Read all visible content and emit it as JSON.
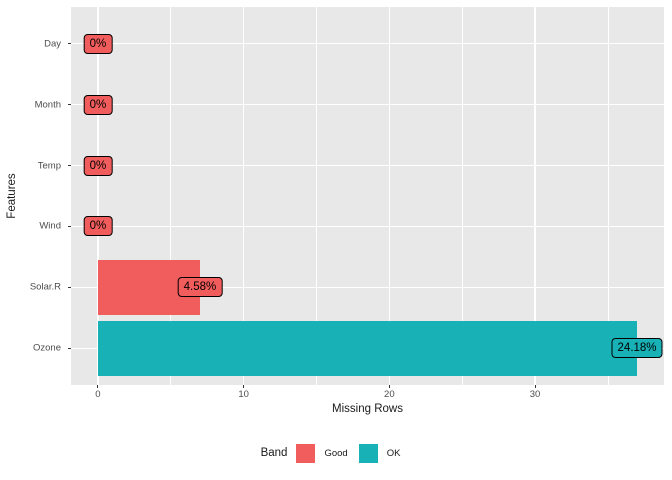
{
  "chart_data": {
    "type": "bar",
    "orientation": "horizontal",
    "xlabel": "Missing Rows",
    "ylabel": "Features",
    "categories_top_to_bottom": [
      "Day",
      "Month",
      "Temp",
      "Wind",
      "Solar.R",
      "Ozone"
    ],
    "series": [
      {
        "name": "Missing Rows",
        "values": [
          0,
          0,
          0,
          0,
          7,
          37
        ]
      }
    ],
    "bar_labels": [
      "0%",
      "0%",
      "0%",
      "0%",
      "4.58%",
      "24.18%"
    ],
    "bands": [
      "Good",
      "Good",
      "Good",
      "Good",
      "Good",
      "OK"
    ],
    "x_ticks": [
      0,
      10,
      20,
      30
    ],
    "x_minor_ticks": [
      5,
      15,
      25,
      35
    ],
    "xlim": [
      -1.85,
      38.85
    ],
    "grid": "on",
    "legend": {
      "title": "Band",
      "position": "bottom",
      "items": [
        {
          "label": "Good",
          "color": "#F15C5C"
        },
        {
          "label": "OK",
          "color": "#18B1B5"
        }
      ]
    },
    "colors": {
      "Good": "#F15C5C",
      "OK": "#18B1B5",
      "panel_bg": "#E8E8E8",
      "gridline": "#FFFFFF",
      "tick_mark": "#333333",
      "tick_label": "#4D4D4D",
      "axis_title": "#1a1a1a",
      "label_border": "#000000",
      "label_text": "#000000"
    }
  }
}
